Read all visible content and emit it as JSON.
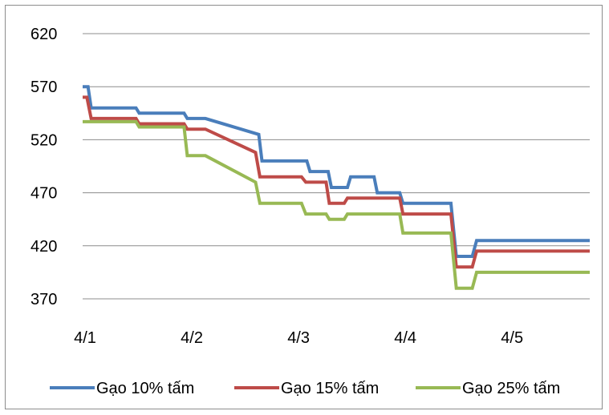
{
  "chart_data": {
    "type": "line",
    "title": "",
    "xlabel": "",
    "ylabel": "",
    "ylim": [
      370,
      620
    ],
    "yticks": [
      620,
      570,
      520,
      470,
      420,
      370
    ],
    "xticks": [
      {
        "label": "4/1",
        "x": 0
      },
      {
        "label": "4/2",
        "x": 1
      },
      {
        "label": "4/3",
        "x": 2
      },
      {
        "label": "4/4",
        "x": 3
      },
      {
        "label": "4/5",
        "x": 4
      }
    ],
    "xlim": [
      0,
      4.75
    ],
    "grid": true,
    "legend_position": "bottom",
    "series": [
      {
        "name": "Gạo 10% tấm",
        "color": "#4a7ebb",
        "points": [
          [
            0.0,
            570
          ],
          [
            0.05,
            570
          ],
          [
            0.08,
            550
          ],
          [
            0.5,
            550
          ],
          [
            0.53,
            545
          ],
          [
            0.95,
            545
          ],
          [
            0.98,
            540
          ],
          [
            1.15,
            540
          ],
          [
            1.65,
            525
          ],
          [
            1.68,
            500
          ],
          [
            2.1,
            500
          ],
          [
            2.13,
            490
          ],
          [
            2.3,
            490
          ],
          [
            2.33,
            475
          ],
          [
            2.48,
            475
          ],
          [
            2.51,
            485
          ],
          [
            2.73,
            485
          ],
          [
            2.76,
            470
          ],
          [
            2.97,
            470
          ],
          [
            3.0,
            460
          ],
          [
            3.45,
            460
          ],
          [
            3.5,
            410
          ],
          [
            3.65,
            410
          ],
          [
            3.69,
            425
          ],
          [
            4.75,
            425
          ]
        ]
      },
      {
        "name": "Gạo 15% tấm",
        "color": "#be4b48",
        "points": [
          [
            0.0,
            560
          ],
          [
            0.04,
            560
          ],
          [
            0.08,
            540
          ],
          [
            0.5,
            540
          ],
          [
            0.53,
            535
          ],
          [
            0.95,
            535
          ],
          [
            0.98,
            530
          ],
          [
            1.15,
            530
          ],
          [
            1.62,
            508
          ],
          [
            1.66,
            485
          ],
          [
            2.05,
            485
          ],
          [
            2.09,
            480
          ],
          [
            2.28,
            480
          ],
          [
            2.31,
            460
          ],
          [
            2.45,
            460
          ],
          [
            2.48,
            465
          ],
          [
            2.97,
            465
          ],
          [
            3.0,
            450
          ],
          [
            3.45,
            450
          ],
          [
            3.5,
            400
          ],
          [
            3.65,
            400
          ],
          [
            3.69,
            415
          ],
          [
            4.75,
            415
          ]
        ]
      },
      {
        "name": "Gạo 25% tấm",
        "color": "#98b954",
        "points": [
          [
            0.0,
            537
          ],
          [
            0.5,
            537
          ],
          [
            0.53,
            532
          ],
          [
            0.95,
            532
          ],
          [
            0.98,
            505
          ],
          [
            1.15,
            505
          ],
          [
            1.62,
            480
          ],
          [
            1.66,
            460
          ],
          [
            2.05,
            460
          ],
          [
            2.09,
            450
          ],
          [
            2.28,
            450
          ],
          [
            2.31,
            445
          ],
          [
            2.45,
            445
          ],
          [
            2.48,
            450
          ],
          [
            2.97,
            450
          ],
          [
            3.0,
            432
          ],
          [
            3.45,
            432
          ],
          [
            3.5,
            380
          ],
          [
            3.65,
            380
          ],
          [
            3.69,
            395
          ],
          [
            4.75,
            395
          ]
        ]
      }
    ]
  }
}
